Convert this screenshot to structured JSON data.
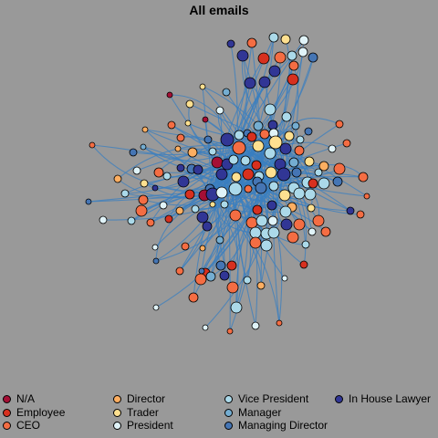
{
  "title": "All emails",
  "legend": [
    {
      "label": "N/A",
      "color": "#a50f35"
    },
    {
      "label": "Employee",
      "color": "#d7301f"
    },
    {
      "label": "CEO",
      "color": "#f46d43"
    },
    {
      "label": "Director",
      "color": "#fdae61"
    },
    {
      "label": "Trader",
      "color": "#fee090"
    },
    {
      "label": "President",
      "color": "#e0f3f8"
    },
    {
      "label": "Vice President",
      "color": "#abd9e9"
    },
    {
      "label": "Manager",
      "color": "#74add1"
    },
    {
      "label": "Managing Director",
      "color": "#4575b4"
    },
    {
      "label": "In House Lawyer",
      "color": "#313695"
    }
  ],
  "edge_color": "#3a7fc0"
}
